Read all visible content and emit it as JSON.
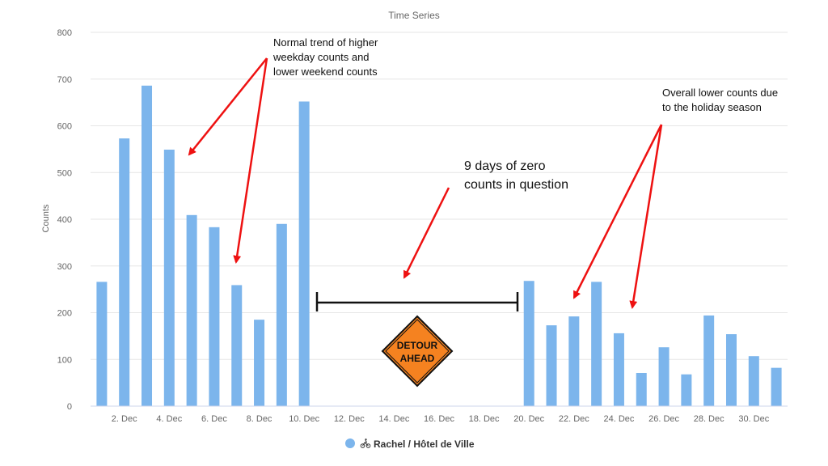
{
  "chart_data": {
    "type": "bar",
    "title": "Time Series",
    "ylabel": "Counts",
    "xlabel": "",
    "ylim": [
      0,
      800
    ],
    "yticks": [
      0,
      100,
      200,
      300,
      400,
      500,
      600,
      700,
      800
    ],
    "grid": true,
    "x": [
      "1. Dec",
      "2. Dec",
      "3. Dec",
      "4. Dec",
      "5. Dec",
      "6. Dec",
      "7. Dec",
      "8. Dec",
      "9. Dec",
      "10. Dec",
      "11. Dec",
      "12. Dec",
      "13. Dec",
      "14. Dec",
      "15. Dec",
      "16. Dec",
      "17. Dec",
      "18. Dec",
      "19. Dec",
      "20. Dec",
      "21. Dec",
      "22. Dec",
      "23. Dec",
      "24. Dec",
      "25. Dec",
      "26. Dec",
      "27. Dec",
      "28. Dec",
      "29. Dec",
      "30. Dec",
      "31. Dec"
    ],
    "x_tick_labels": [
      "2. Dec",
      "4. Dec",
      "6. Dec",
      "8. Dec",
      "10. Dec",
      "12. Dec",
      "14. Dec",
      "16. Dec",
      "18. Dec",
      "20. Dec",
      "22. Dec",
      "24. Dec",
      "26. Dec",
      "28. Dec",
      "30. Dec"
    ],
    "series": [
      {
        "name": "Rachel / Hôtel de Ville",
        "color": "#7cb5ec",
        "values": [
          266,
          573,
          686,
          549,
          409,
          383,
          259,
          185,
          390,
          652,
          0,
          0,
          0,
          0,
          0,
          0,
          0,
          0,
          0,
          268,
          173,
          192,
          266,
          156,
          71,
          126,
          68,
          194,
          154,
          107,
          82
        ]
      }
    ],
    "legend": {
      "position": "bottom-center",
      "icon": "bicycle-icon"
    },
    "annotations": [
      {
        "text_lines": [
          "Normal trend of higher",
          "weekday counts and",
          "lower weekend counts"
        ]
      },
      {
        "text_lines": [
          "Overall lower counts due",
          "to the holiday season"
        ]
      },
      {
        "text_lines": [
          "9 days of zero",
          "counts in question"
        ]
      }
    ],
    "sign": {
      "lines": [
        "DETOUR",
        "AHEAD"
      ],
      "color": "#f58220"
    },
    "arrow_color": "#ee1111"
  }
}
